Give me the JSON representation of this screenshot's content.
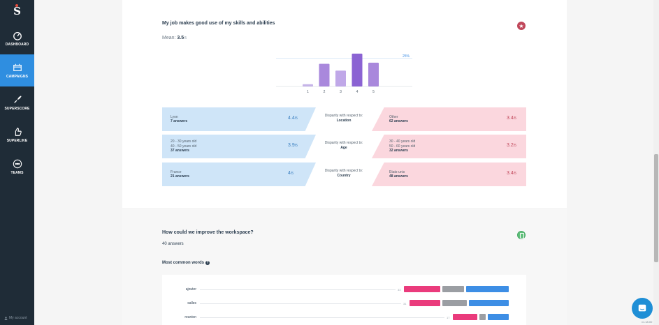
{
  "sidebar": {
    "logo": "S",
    "items": [
      {
        "label": "DASHBOARD",
        "icon": "dashboard-icon",
        "active": false
      },
      {
        "label": "CAMPAIGNS",
        "icon": "campaigns-icon",
        "active": true
      },
      {
        "label": "SUPERSCORE",
        "icon": "rocket-icon",
        "active": false
      },
      {
        "label": "SUPERLIKE",
        "icon": "thumb-up-icon",
        "active": false
      },
      {
        "label": "TEAMS",
        "icon": "teams-icon",
        "active": false
      }
    ],
    "account": "My account"
  },
  "question1": {
    "title": "My job makes good use of my skills and abilities",
    "mean_label": "Mean:",
    "mean_value": "3.5",
    "mean_den": "/5",
    "badge_icon": "star-icon",
    "chart_data": {
      "type": "bar",
      "categories": [
        "1",
        "2",
        "3",
        "4",
        "5"
      ],
      "values": [
        2,
        20,
        14,
        29,
        21
      ],
      "reference_line_label": "25%",
      "reference_line_value": 25,
      "ylim": [
        0,
        32
      ],
      "bar_colors": [
        "#c6b4e8",
        "#a988dc",
        "#c0a8e8",
        "#8b63d3",
        "#a988dc"
      ]
    },
    "disparities": [
      {
        "left": {
          "lines": [
            "Lyon"
          ],
          "answers": "7 answers",
          "score": "4.4",
          "den": "/5"
        },
        "mid": {
          "label": "Disparity with respect to:",
          "value": "Location"
        },
        "right": {
          "lines": [
            "Other"
          ],
          "answers": "62 answers",
          "score": "3.4",
          "den": "/5"
        }
      },
      {
        "left": {
          "lines": [
            "20 - 30 years old",
            "40 - 50 years old"
          ],
          "answers": "37 answers",
          "score": "3.9",
          "den": "/5"
        },
        "mid": {
          "label": "Disparity with respect to:",
          "value": "Age"
        },
        "right": {
          "lines": [
            "30 - 40 years old",
            "50 - 60 years old"
          ],
          "answers": "32 answers",
          "score": "3.2",
          "den": "/5"
        }
      },
      {
        "left": {
          "lines": [
            "France"
          ],
          "answers": "21 answers",
          "score": "4",
          "den": "/5"
        },
        "mid": {
          "label": "Disparity with respect to:",
          "value": "Country"
        },
        "right": {
          "lines": [
            "Etats-unis"
          ],
          "answers": "48 answers",
          "score": "3.4",
          "den": "/5"
        }
      }
    ]
  },
  "question2": {
    "title": "How could we improve the workspace?",
    "answers": "40 answers",
    "badge_icon": "trash-icon",
    "most_common_label": "Most common words",
    "words": [
      {
        "word": "ajouter",
        "count": "33",
        "pink": 52,
        "grey": 31,
        "blue": 61
      },
      {
        "word": "salles",
        "count": "31",
        "pink": 44,
        "grey": 35,
        "blue": 57
      },
      {
        "word": "reunion",
        "count": "17",
        "pink": 35,
        "grey": 9,
        "blue": 30
      }
    ]
  },
  "version": "v1.18.00"
}
